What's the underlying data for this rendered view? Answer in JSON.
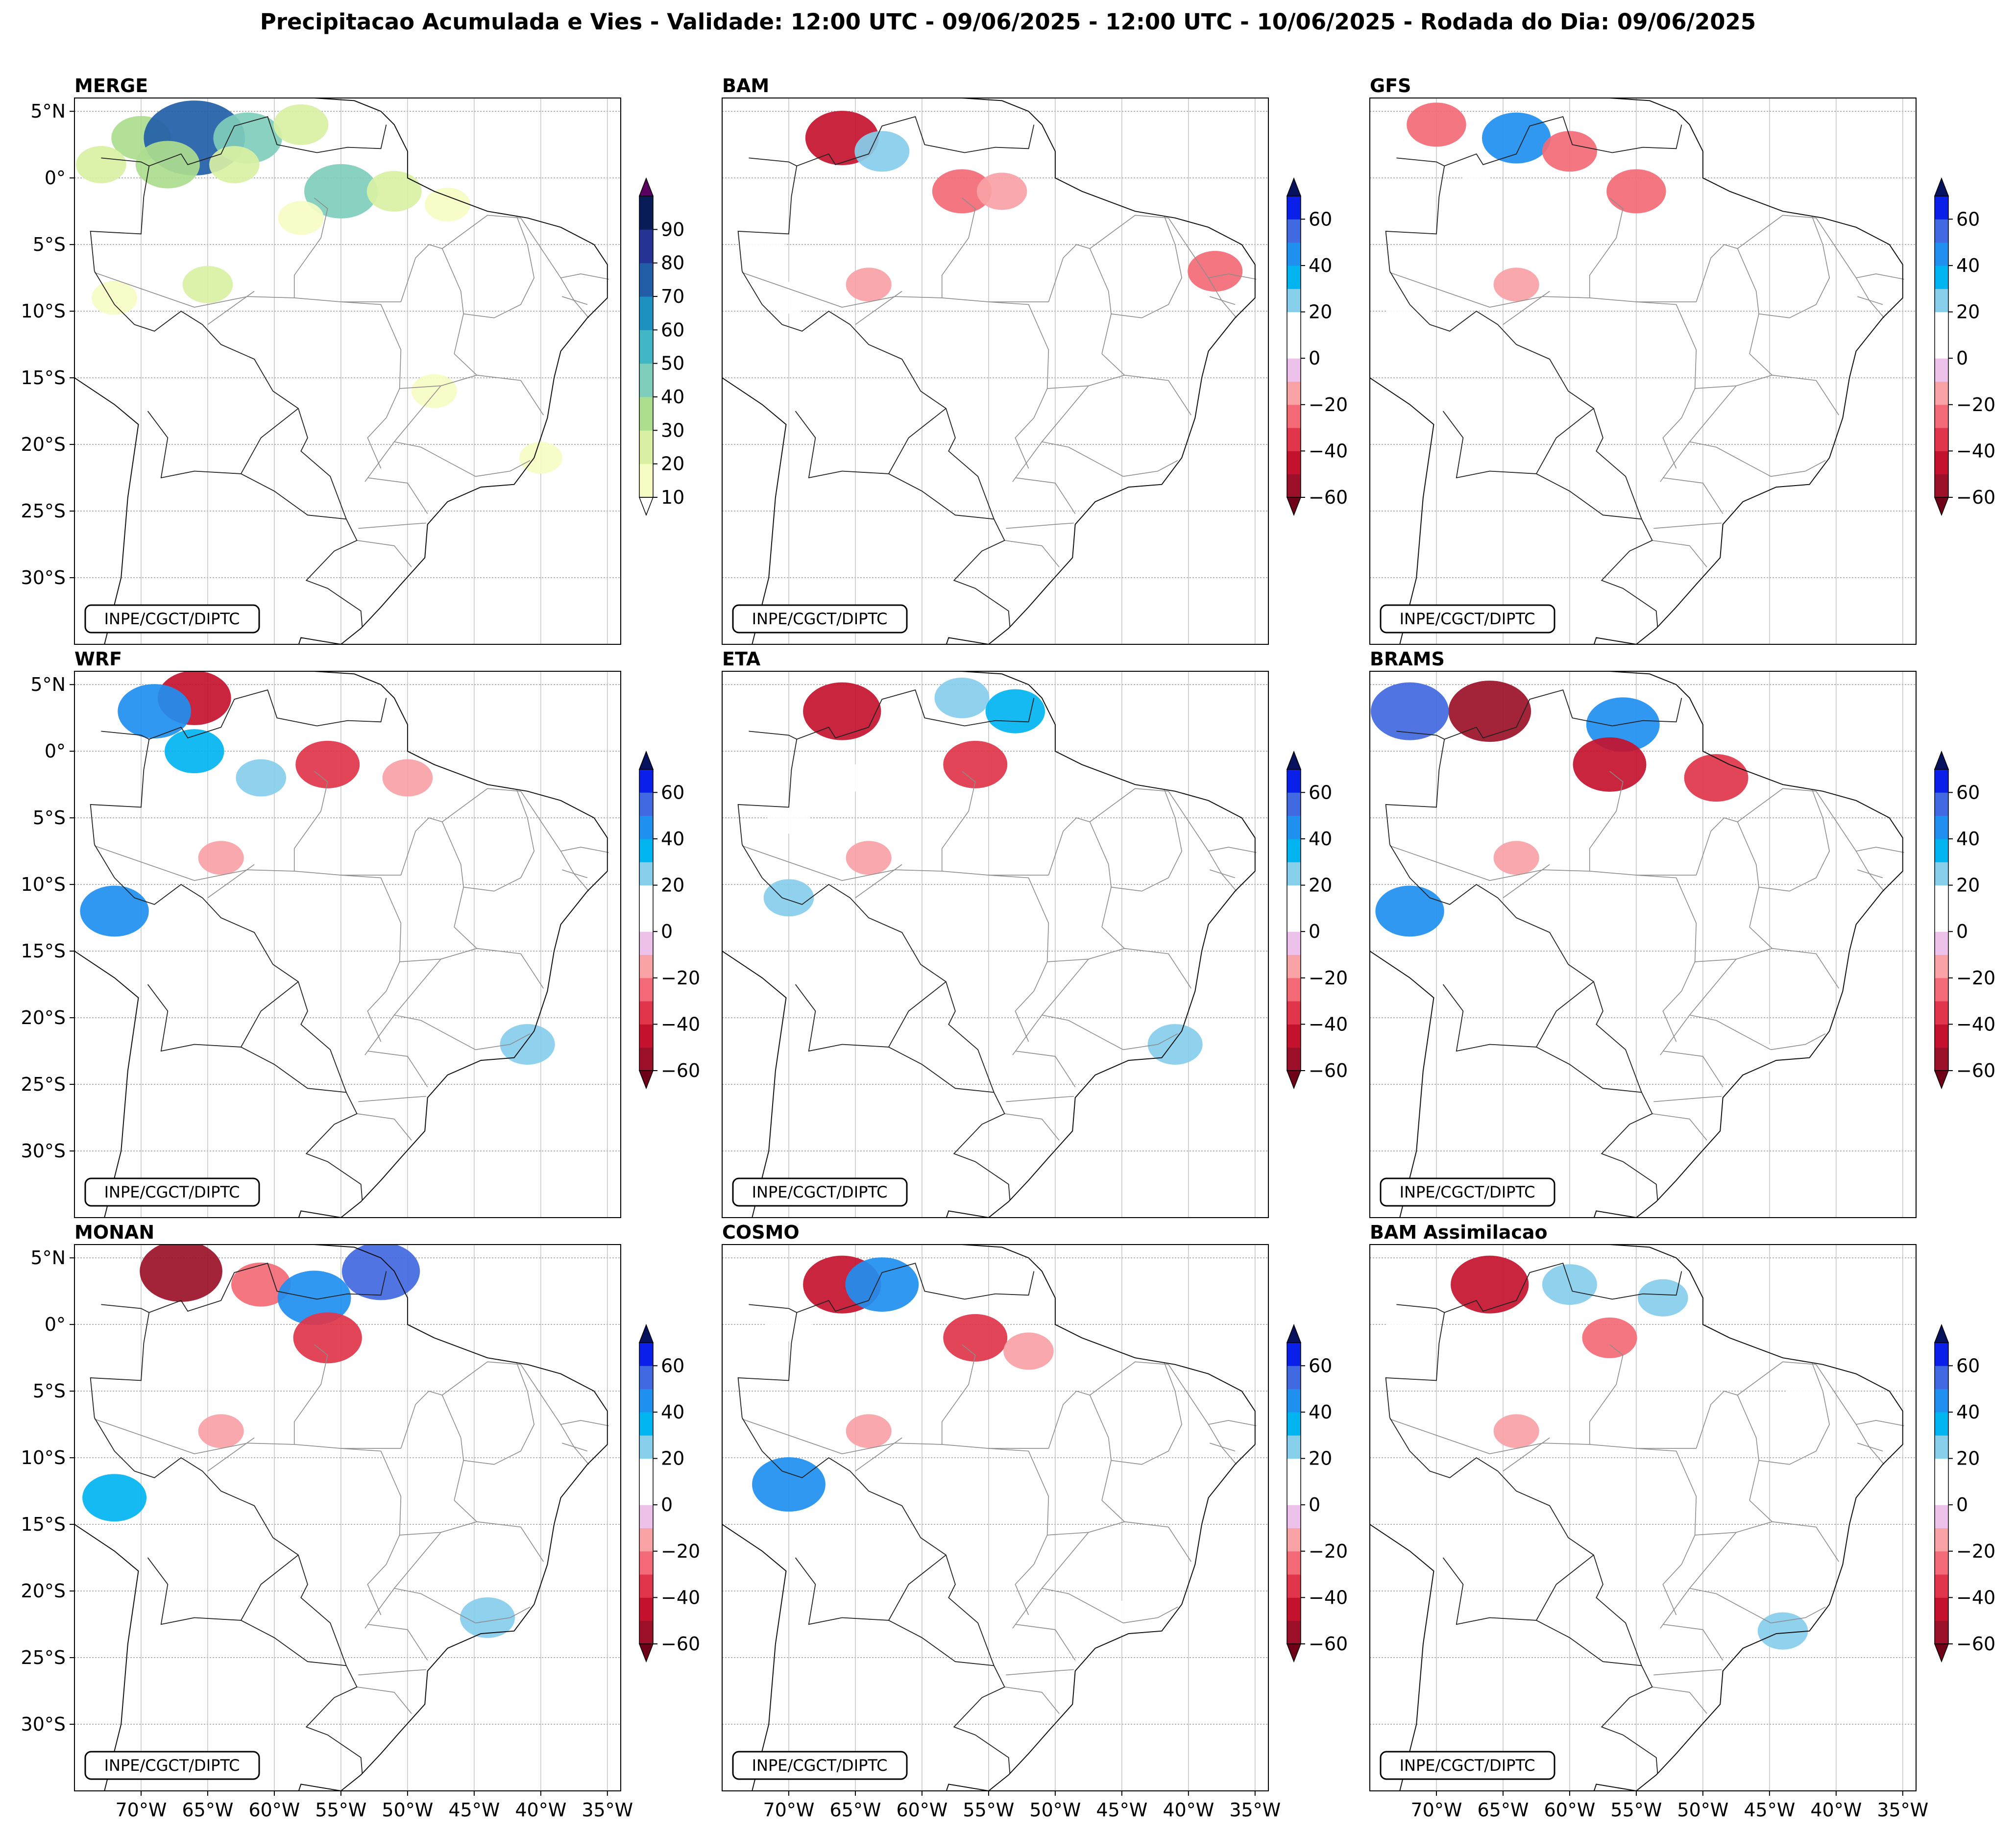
{
  "figure": {
    "title": "Precipitacao Acumulada e Vies - Validade: 12:00 UTC - 09/06/2025 - 12:00 UTC - 10/06/2025 - Rodada do Dia: 09/06/2025",
    "credit": "INPE/CGCT/DIPTC"
  },
  "chart_data": [
    {
      "type": "heatmap",
      "title": "MERGE",
      "variable": "precipitacao acumulada (mm)",
      "lon_range": [
        -75,
        -34
      ],
      "lat_range": [
        -35,
        6
      ],
      "lat_ticks": [
        {
          "v": 5,
          "label": "5°N"
        },
        {
          "v": 0,
          "label": "0°"
        },
        {
          "v": -5,
          "label": "5°S"
        },
        {
          "v": -10,
          "label": "10°S"
        },
        {
          "v": -15,
          "label": "15°S"
        },
        {
          "v": -20,
          "label": "20°S"
        },
        {
          "v": -25,
          "label": "25°S"
        },
        {
          "v": -30,
          "label": "30°S"
        }
      ],
      "lon_ticks": [],
      "colorbar": {
        "levels": [
          10,
          20,
          30,
          40,
          50,
          60,
          70,
          80,
          90
        ],
        "colors": [
          "#f7fcc4",
          "#d9f0a3",
          "#addd8e",
          "#7fcdbb",
          "#41b6c4",
          "#1d91c0",
          "#225ea8",
          "#253494",
          "#081d58"
        ],
        "under": "#ffffff",
        "over": "#5a0060"
      },
      "cells": [
        {
          "lon": -70,
          "lat": 3,
          "v": 30
        },
        {
          "lon": -66,
          "lat": 3,
          "v": 75
        },
        {
          "lon": -62,
          "lat": 3,
          "v": 40
        },
        {
          "lon": -58,
          "lat": 4,
          "v": 25
        },
        {
          "lon": -73,
          "lat": 1,
          "v": 20
        },
        {
          "lon": -68,
          "lat": 1,
          "v": 35
        },
        {
          "lon": -63,
          "lat": 1,
          "v": 20
        },
        {
          "lon": -55,
          "lat": -1,
          "v": 45
        },
        {
          "lon": -51,
          "lat": -1,
          "v": 25
        },
        {
          "lon": -47,
          "lat": -2,
          "v": 15
        },
        {
          "lon": -58,
          "lat": -3,
          "v": 15
        },
        {
          "lon": -72,
          "lat": -9,
          "v": 15
        },
        {
          "lon": -65,
          "lat": -8,
          "v": 20
        },
        {
          "lon": -48,
          "lat": -16,
          "v": 15
        },
        {
          "lon": -40,
          "lat": -21,
          "v": 12
        }
      ]
    },
    {
      "type": "heatmap",
      "title": "BAM",
      "variable": "vies (mm)",
      "lon_range": [
        -75,
        -34
      ],
      "lat_range": [
        -35,
        6
      ],
      "lat_ticks": [],
      "lon_ticks": [],
      "colorbar": {
        "levels": [
          -60,
          -50,
          -40,
          -30,
          -20,
          -10,
          0,
          10,
          20,
          30,
          40,
          50,
          60
        ],
        "colors": [
          "#9b1028",
          "#c4122e",
          "#e0354a",
          "#f36a76",
          "#f9a2a6",
          "#eec1ea",
          "#ffffff",
          "#ffffff",
          "#87ceeb",
          "#00b4f0",
          "#1f8ff0",
          "#4169e1",
          "#0a1fe8"
        ],
        "under": "#6e0018",
        "over": "#07125e"
      },
      "cells": [
        {
          "lon": -66,
          "lat": 3,
          "v": -45
        },
        {
          "lon": -72,
          "lat": -5,
          "v": 15
        },
        {
          "lon": -70,
          "lat": -9,
          "v": 12
        },
        {
          "lon": -63,
          "lat": 2,
          "v": 25
        },
        {
          "lon": -57,
          "lat": -1,
          "v": -30
        },
        {
          "lon": -54,
          "lat": -1,
          "v": -20
        },
        {
          "lon": -64,
          "lat": -8,
          "v": -15
        },
        {
          "lon": -42,
          "lat": -22,
          "v": 15
        },
        {
          "lon": -38,
          "lat": -7,
          "v": -25
        }
      ]
    },
    {
      "type": "heatmap",
      "title": "GFS",
      "variable": "vies (mm)",
      "lon_range": [
        -75,
        -34
      ],
      "lat_range": [
        -35,
        6
      ],
      "lat_ticks": [],
      "lon_ticks": [],
      "colorbar": {
        "levels": [
          -60,
          -50,
          -40,
          -30,
          -20,
          -10,
          0,
          10,
          20,
          30,
          40,
          50,
          60
        ],
        "colors": [
          "#9b1028",
          "#c4122e",
          "#e0354a",
          "#f36a76",
          "#f9a2a6",
          "#eec1ea",
          "#ffffff",
          "#ffffff",
          "#87ceeb",
          "#00b4f0",
          "#1f8ff0",
          "#4169e1",
          "#0a1fe8"
        ],
        "under": "#6e0018",
        "over": "#07125e"
      },
      "cells": [
        {
          "lon": -64,
          "lat": 3,
          "v": 40
        },
        {
          "lon": -70,
          "lat": 4,
          "v": -30
        },
        {
          "lon": -60,
          "lat": 2,
          "v": -25
        },
        {
          "lon": -55,
          "lat": -1,
          "v": -30
        },
        {
          "lon": -67,
          "lat": -1,
          "v": 15
        },
        {
          "lon": -64,
          "lat": -8,
          "v": -15
        },
        {
          "lon": -72,
          "lat": -10,
          "v": 15
        },
        {
          "lon": -43,
          "lat": -22,
          "v": 12
        }
      ]
    },
    {
      "type": "heatmap",
      "title": "WRF",
      "variable": "vies (mm)",
      "lon_range": [
        -75,
        -34
      ],
      "lat_range": [
        -35,
        6
      ],
      "lat_ticks": [
        {
          "v": 5,
          "label": "5°N"
        },
        {
          "v": 0,
          "label": "0°"
        },
        {
          "v": -5,
          "label": "5°S"
        },
        {
          "v": -10,
          "label": "10°S"
        },
        {
          "v": -15,
          "label": "15°S"
        },
        {
          "v": -20,
          "label": "20°S"
        },
        {
          "v": -25,
          "label": "25°S"
        },
        {
          "v": -30,
          "label": "30°S"
        }
      ],
      "lon_ticks": [],
      "colorbar": {
        "levels": [
          -60,
          -50,
          -40,
          -30,
          -20,
          -10,
          0,
          10,
          20,
          30,
          40,
          50,
          60
        ],
        "colors": [
          "#9b1028",
          "#c4122e",
          "#e0354a",
          "#f36a76",
          "#f9a2a6",
          "#eec1ea",
          "#ffffff",
          "#ffffff",
          "#87ceeb",
          "#00b4f0",
          "#1f8ff0",
          "#4169e1",
          "#0a1fe8"
        ],
        "under": "#6e0018",
        "over": "#07125e"
      },
      "cells": [
        {
          "lon": -66,
          "lat": 4,
          "v": -45
        },
        {
          "lon": -69,
          "lat": 3,
          "v": 45
        },
        {
          "lon": -66,
          "lat": 0,
          "v": 30
        },
        {
          "lon": -61,
          "lat": -2,
          "v": 20
        },
        {
          "lon": -56,
          "lat": -1,
          "v": -35
        },
        {
          "lon": -50,
          "lat": -2,
          "v": -20
        },
        {
          "lon": -72,
          "lat": -12,
          "v": 40
        },
        {
          "lon": -64,
          "lat": -8,
          "v": -15
        },
        {
          "lon": -41,
          "lat": -22,
          "v": 25
        }
      ]
    },
    {
      "type": "heatmap",
      "title": "ETA",
      "variable": "vies (mm)",
      "lon_range": [
        -75,
        -34
      ],
      "lat_range": [
        -35,
        6
      ],
      "lat_ticks": [],
      "lon_ticks": [],
      "colorbar": {
        "levels": [
          -60,
          -50,
          -40,
          -30,
          -20,
          -10,
          0,
          10,
          20,
          30,
          40,
          50,
          60
        ],
        "colors": [
          "#9b1028",
          "#c4122e",
          "#e0354a",
          "#f36a76",
          "#f9a2a6",
          "#eec1ea",
          "#ffffff",
          "#ffffff",
          "#87ceeb",
          "#00b4f0",
          "#1f8ff0",
          "#4169e1",
          "#0a1fe8"
        ],
        "under": "#6e0018",
        "over": "#07125e"
      },
      "cells": [
        {
          "lon": -66,
          "lat": 3,
          "v": -50
        },
        {
          "lon": -57,
          "lat": 4,
          "v": 25
        },
        {
          "lon": -53,
          "lat": 3,
          "v": 30
        },
        {
          "lon": -66,
          "lat": -2,
          "v": 15
        },
        {
          "lon": -70,
          "lat": -5,
          "v": 12
        },
        {
          "lon": -56,
          "lat": -1,
          "v": -35
        },
        {
          "lon": -64,
          "lat": -8,
          "v": -15
        },
        {
          "lon": -70,
          "lat": -11,
          "v": 20
        },
        {
          "lon": -41,
          "lat": -22,
          "v": 25
        }
      ]
    },
    {
      "type": "heatmap",
      "title": "BRAMS",
      "variable": "vies (mm)",
      "lon_range": [
        -75,
        -34
      ],
      "lat_range": [
        -35,
        6
      ],
      "lat_ticks": [],
      "lon_ticks": [],
      "colorbar": {
        "levels": [
          -60,
          -50,
          -40,
          -30,
          -20,
          -10,
          0,
          10,
          20,
          30,
          40,
          50,
          60
        ],
        "colors": [
          "#9b1028",
          "#c4122e",
          "#e0354a",
          "#f36a76",
          "#f9a2a6",
          "#eec1ea",
          "#ffffff",
          "#ffffff",
          "#87ceeb",
          "#00b4f0",
          "#1f8ff0",
          "#4169e1",
          "#0a1fe8"
        ],
        "under": "#6e0018",
        "over": "#07125e"
      },
      "cells": [
        {
          "lon": -66,
          "lat": 3,
          "v": -55
        },
        {
          "lon": -72,
          "lat": 3,
          "v": 50
        },
        {
          "lon": -56,
          "lat": 2,
          "v": 45
        },
        {
          "lon": -57,
          "lat": -1,
          "v": -45
        },
        {
          "lon": -49,
          "lat": -2,
          "v": -35
        },
        {
          "lon": -72,
          "lat": -12,
          "v": 40
        },
        {
          "lon": -64,
          "lat": -8,
          "v": -15
        },
        {
          "lon": -44,
          "lat": -23,
          "v": 15
        }
      ]
    },
    {
      "type": "heatmap",
      "title": "MONAN",
      "variable": "vies (mm)",
      "lon_range": [
        -75,
        -34
      ],
      "lat_range": [
        -35,
        6
      ],
      "lat_ticks": [
        {
          "v": 5,
          "label": "5°N"
        },
        {
          "v": 0,
          "label": "0°"
        },
        {
          "v": -5,
          "label": "5°S"
        },
        {
          "v": -10,
          "label": "10°S"
        },
        {
          "v": -15,
          "label": "15°S"
        },
        {
          "v": -20,
          "label": "20°S"
        },
        {
          "v": -25,
          "label": "25°S"
        },
        {
          "v": -30,
          "label": "30°S"
        }
      ],
      "lon_ticks": [
        {
          "v": -70,
          "label": "70°W"
        },
        {
          "v": -65,
          "label": "65°W"
        },
        {
          "v": -60,
          "label": "60°W"
        },
        {
          "v": -55,
          "label": "55°W"
        },
        {
          "v": -50,
          "label": "50°W"
        },
        {
          "v": -45,
          "label": "45°W"
        },
        {
          "v": -40,
          "label": "40°W"
        },
        {
          "v": -35,
          "label": "35°W"
        }
      ],
      "colorbar": {
        "levels": [
          -60,
          -50,
          -40,
          -30,
          -20,
          -10,
          0,
          10,
          20,
          30,
          40,
          50,
          60
        ],
        "colors": [
          "#9b1028",
          "#c4122e",
          "#e0354a",
          "#f36a76",
          "#f9a2a6",
          "#eec1ea",
          "#ffffff",
          "#ffffff",
          "#87ceeb",
          "#00b4f0",
          "#1f8ff0",
          "#4169e1",
          "#0a1fe8"
        ],
        "under": "#6e0018",
        "over": "#07125e"
      },
      "cells": [
        {
          "lon": -67,
          "lat": 4,
          "v": -55
        },
        {
          "lon": -61,
          "lat": 3,
          "v": -30
        },
        {
          "lon": -57,
          "lat": 2,
          "v": 45
        },
        {
          "lon": -52,
          "lat": 4,
          "v": 50
        },
        {
          "lon": -56,
          "lat": -1,
          "v": -40
        },
        {
          "lon": -72,
          "lat": -13,
          "v": 35
        },
        {
          "lon": -64,
          "lat": -8,
          "v": -15
        },
        {
          "lon": -44,
          "lat": -22,
          "v": 25
        }
      ]
    },
    {
      "type": "heatmap",
      "title": "COSMO",
      "variable": "vies (mm)",
      "lon_range": [
        -75,
        -34
      ],
      "lat_range": [
        -35,
        6
      ],
      "lat_ticks": [],
      "lon_ticks": [
        {
          "v": -70,
          "label": "70°W"
        },
        {
          "v": -65,
          "label": "65°W"
        },
        {
          "v": -60,
          "label": "60°W"
        },
        {
          "v": -55,
          "label": "55°W"
        },
        {
          "v": -50,
          "label": "50°W"
        },
        {
          "v": -45,
          "label": "45°W"
        },
        {
          "v": -40,
          "label": "40°W"
        },
        {
          "v": -35,
          "label": "35°W"
        }
      ],
      "colorbar": {
        "levels": [
          -60,
          -50,
          -40,
          -30,
          -20,
          -10,
          0,
          10,
          20,
          30,
          40,
          50,
          60
        ],
        "colors": [
          "#9b1028",
          "#c4122e",
          "#e0354a",
          "#f36a76",
          "#f9a2a6",
          "#eec1ea",
          "#ffffff",
          "#ffffff",
          "#87ceeb",
          "#00b4f0",
          "#1f8ff0",
          "#4169e1",
          "#0a1fe8"
        ],
        "under": "#6e0018",
        "over": "#07125e"
      },
      "cells": [
        {
          "lon": -66,
          "lat": 3,
          "v": -50
        },
        {
          "lon": -63,
          "lat": 3,
          "v": 45
        },
        {
          "lon": -70,
          "lat": 0,
          "v": 15
        },
        {
          "lon": -56,
          "lat": -1,
          "v": -35
        },
        {
          "lon": -52,
          "lat": -2,
          "v": -20
        },
        {
          "lon": -70,
          "lat": -12,
          "v": 45
        },
        {
          "lon": -64,
          "lat": -8,
          "v": -15
        },
        {
          "lon": -45,
          "lat": -22,
          "v": 15
        }
      ]
    },
    {
      "type": "heatmap",
      "title": "BAM Assimilacao",
      "variable": "vies (mm)",
      "lon_range": [
        -75,
        -34
      ],
      "lat_range": [
        -35,
        6
      ],
      "lat_ticks": [],
      "lon_ticks": [
        {
          "v": -70,
          "label": "70°W"
        },
        {
          "v": -65,
          "label": "65°W"
        },
        {
          "v": -60,
          "label": "60°W"
        },
        {
          "v": -55,
          "label": "55°W"
        },
        {
          "v": -50,
          "label": "50°W"
        },
        {
          "v": -45,
          "label": "45°W"
        },
        {
          "v": -40,
          "label": "40°W"
        },
        {
          "v": -35,
          "label": "35°W"
        }
      ],
      "colorbar": {
        "levels": [
          -60,
          -50,
          -40,
          -30,
          -20,
          -10,
          0,
          10,
          20,
          30,
          40,
          50,
          60
        ],
        "colors": [
          "#9b1028",
          "#c4122e",
          "#e0354a",
          "#f36a76",
          "#f9a2a6",
          "#eec1ea",
          "#ffffff",
          "#ffffff",
          "#87ceeb",
          "#00b4f0",
          "#1f8ff0",
          "#4169e1",
          "#0a1fe8"
        ],
        "under": "#6e0018",
        "over": "#07125e"
      },
      "cells": [
        {
          "lon": -66,
          "lat": 3,
          "v": -50
        },
        {
          "lon": -60,
          "lat": 3,
          "v": 25
        },
        {
          "lon": -53,
          "lat": 2,
          "v": 20
        },
        {
          "lon": -72,
          "lat": 0,
          "v": 15
        },
        {
          "lon": -57,
          "lat": -1,
          "v": -25
        },
        {
          "lon": -42,
          "lat": -5,
          "v": 15
        },
        {
          "lon": -64,
          "lat": -8,
          "v": -15
        },
        {
          "lon": -68,
          "lat": -12,
          "v": 15
        },
        {
          "lon": -44,
          "lat": -23,
          "v": 20
        }
      ]
    }
  ]
}
